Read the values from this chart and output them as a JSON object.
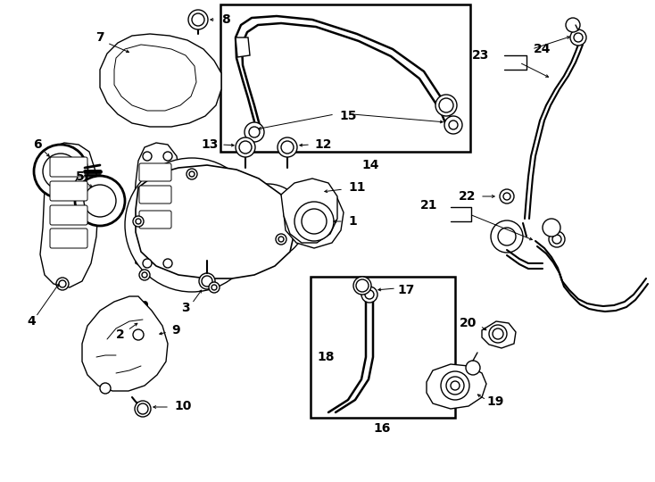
{
  "bg_color": "#ffffff",
  "line_color": "#000000",
  "fig_width": 7.34,
  "fig_height": 5.4,
  "dpi": 100,
  "arrow_lw": 0.7,
  "part_lw": 1.0,
  "label_fs": 10
}
